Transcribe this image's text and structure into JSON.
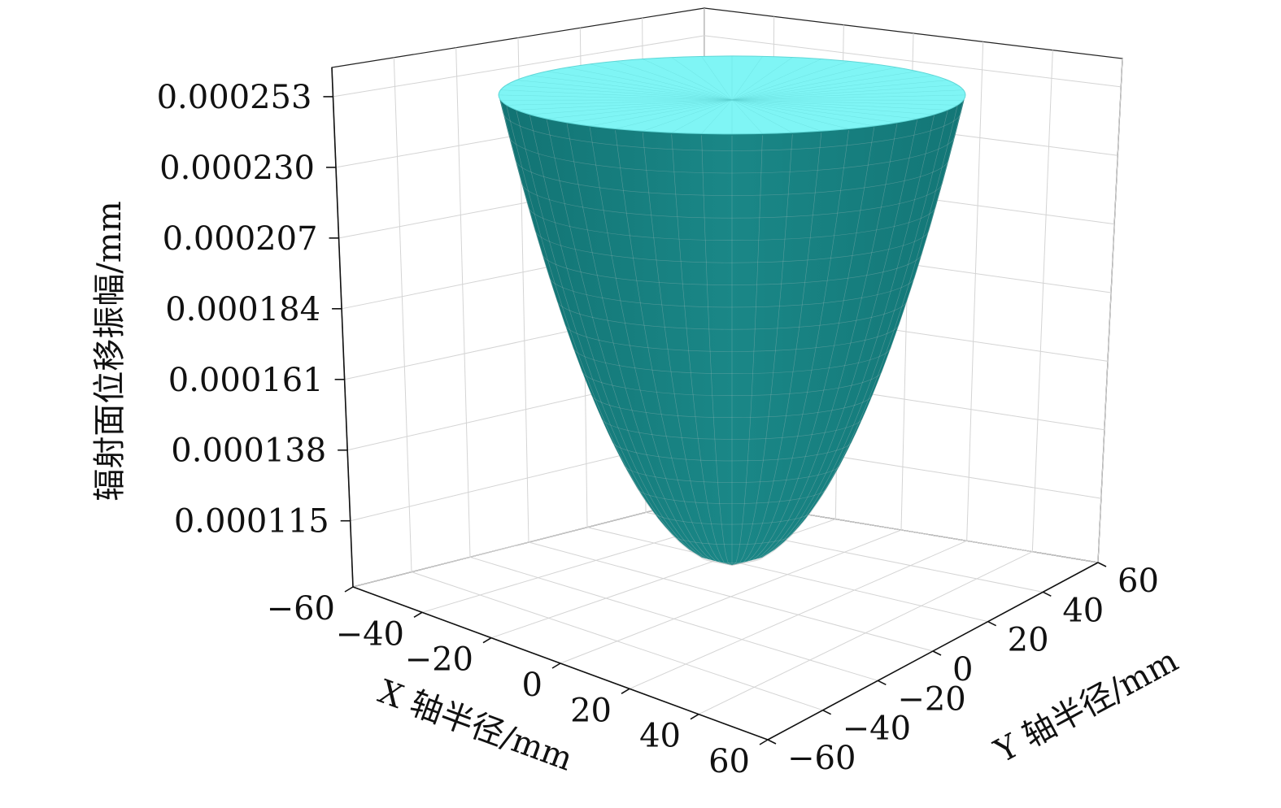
{
  "chart_data": {
    "type": "surface3d",
    "title": "",
    "surface": {
      "shape": "paraboloid",
      "description_values": {
        "z_min": 0.000105,
        "z_max": 0.000253,
        "rim_radius_mm": 60
      }
    },
    "colors": {
      "surface_outer": "#1a8585",
      "surface_inner": "#7ff5f5",
      "mesh_line": "#c9c9c9",
      "grid": "#d4d4d4",
      "axis": "#111111"
    },
    "x_axis": {
      "label": "X 轴半径/mm",
      "ticks": [
        -60,
        -40,
        -20,
        0,
        20,
        40,
        60
      ],
      "tick_labels": [
        "−60",
        "−40",
        "−20",
        "0",
        "20",
        "40",
        "60"
      ],
      "range": [
        -60,
        60
      ]
    },
    "y_axis": {
      "label": "Y 轴半径/mm",
      "ticks": [
        -60,
        -40,
        -20,
        0,
        20,
        40,
        60
      ],
      "tick_labels": [
        "−60",
        "−40",
        "−20",
        "0",
        "20",
        "40",
        "60"
      ],
      "range": [
        -60,
        60
      ]
    },
    "z_axis": {
      "label": "辐射面位移振幅/mm",
      "ticks": [
        0.000115,
        0.000138,
        0.000161,
        0.000184,
        0.000207,
        0.00023,
        0.000253
      ],
      "tick_labels": [
        "0.000115",
        "0.000138",
        "0.000161",
        "0.000184",
        "0.000207",
        "0.000230",
        "0.000253"
      ]
    },
    "grid": true
  }
}
